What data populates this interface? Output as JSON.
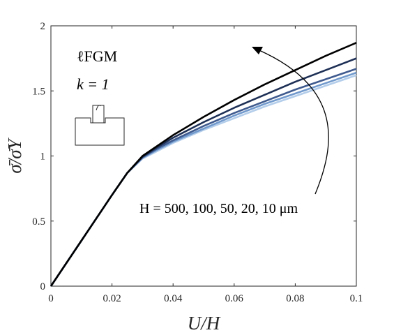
{
  "chart_data": {
    "type": "line",
    "xlabel": "U/H",
    "ylabel": "σ̄/σ̄Y",
    "xlim": [
      0,
      0.1
    ],
    "ylim": [
      0,
      2
    ],
    "xticks": [
      "0",
      "0.02",
      "0.04",
      "0.06",
      "0.08",
      "0.1"
    ],
    "yticks": [
      "0",
      "0.5",
      "1",
      "1.5",
      "2"
    ],
    "grid": false,
    "annotations": {
      "length_scale": "ℓFGM",
      "k_label": "k = 1",
      "series_label": "H = 500, 100, 50, 20, 10 μm"
    },
    "series": [
      {
        "color": "#000000",
        "points": [
          [
            0,
            0
          ],
          [
            0.01,
            0.35
          ],
          [
            0.02,
            0.7
          ],
          [
            0.025,
            0.87
          ],
          [
            0.03,
            1.0
          ],
          [
            0.035,
            1.08
          ],
          [
            0.04,
            1.16
          ],
          [
            0.05,
            1.3
          ],
          [
            0.06,
            1.43
          ],
          [
            0.07,
            1.55
          ],
          [
            0.08,
            1.66
          ],
          [
            0.09,
            1.77
          ],
          [
            0.1,
            1.87
          ]
        ]
      },
      {
        "color": "#1d2f55",
        "points": [
          [
            0,
            0
          ],
          [
            0.01,
            0.35
          ],
          [
            0.02,
            0.7
          ],
          [
            0.025,
            0.87
          ],
          [
            0.03,
            0.995
          ],
          [
            0.035,
            1.07
          ],
          [
            0.04,
            1.14
          ],
          [
            0.05,
            1.26
          ],
          [
            0.06,
            1.37
          ],
          [
            0.07,
            1.47
          ],
          [
            0.08,
            1.57
          ],
          [
            0.09,
            1.66
          ],
          [
            0.1,
            1.75
          ]
        ]
      },
      {
        "color": "#3e5a8e",
        "points": [
          [
            0,
            0
          ],
          [
            0.01,
            0.35
          ],
          [
            0.02,
            0.7
          ],
          [
            0.025,
            0.87
          ],
          [
            0.03,
            0.99
          ],
          [
            0.035,
            1.06
          ],
          [
            0.04,
            1.12
          ],
          [
            0.05,
            1.23
          ],
          [
            0.06,
            1.33
          ],
          [
            0.07,
            1.42
          ],
          [
            0.08,
            1.51
          ],
          [
            0.09,
            1.59
          ],
          [
            0.1,
            1.67
          ]
        ]
      },
      {
        "color": "#7199cc",
        "points": [
          [
            0,
            0
          ],
          [
            0.01,
            0.35
          ],
          [
            0.02,
            0.7
          ],
          [
            0.025,
            0.87
          ],
          [
            0.03,
            0.985
          ],
          [
            0.035,
            1.05
          ],
          [
            0.04,
            1.11
          ],
          [
            0.05,
            1.21
          ],
          [
            0.06,
            1.31
          ],
          [
            0.07,
            1.4
          ],
          [
            0.08,
            1.48
          ],
          [
            0.09,
            1.56
          ],
          [
            0.1,
            1.64
          ]
        ]
      },
      {
        "color": "#b3cdea",
        "points": [
          [
            0,
            0
          ],
          [
            0.01,
            0.35
          ],
          [
            0.02,
            0.7
          ],
          [
            0.025,
            0.87
          ],
          [
            0.03,
            0.98
          ],
          [
            0.035,
            1.04
          ],
          [
            0.04,
            1.1
          ],
          [
            0.05,
            1.2
          ],
          [
            0.06,
            1.29
          ],
          [
            0.07,
            1.38
          ],
          [
            0.08,
            1.46
          ],
          [
            0.09,
            1.54
          ],
          [
            0.1,
            1.62
          ]
        ]
      }
    ]
  }
}
